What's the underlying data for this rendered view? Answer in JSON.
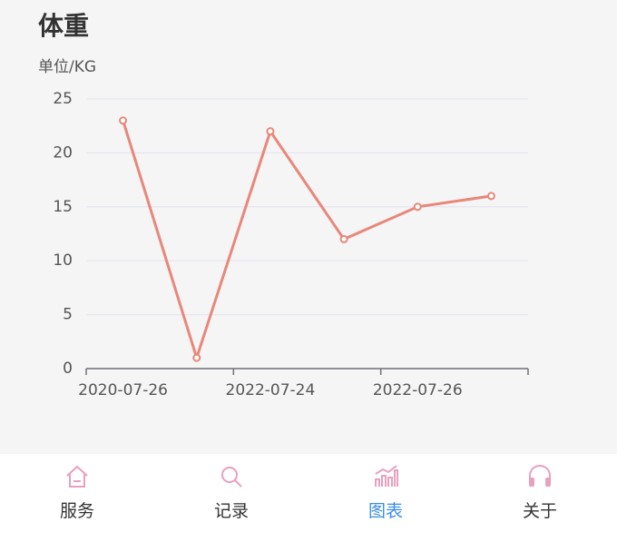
{
  "chart_data": {
    "type": "line",
    "title": "体重",
    "y_label": "单位/KG",
    "categories": [
      "2020-07-26",
      null,
      "2022-07-24",
      null,
      "2022-07-26",
      null
    ],
    "values": [
      23,
      1,
      22,
      12,
      15,
      16
    ],
    "color": "#e8877a",
    "ylim": [
      0,
      25
    ],
    "yticks": [
      0,
      5,
      10,
      15,
      20,
      25
    ],
    "grid": true
  },
  "nav": {
    "items": [
      "服务",
      "记录",
      "图表",
      "关于"
    ]
  }
}
